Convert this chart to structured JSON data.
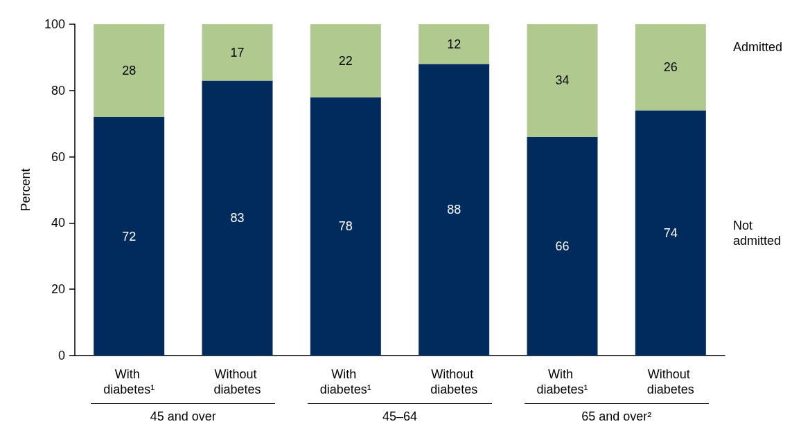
{
  "chart_data": {
    "type": "bar",
    "ylabel": "Percent",
    "categories": [
      "With diabetes¹",
      "Without diabetes",
      "With diabetes¹",
      "Without diabetes",
      "With diabetes¹",
      "Without diabetes"
    ],
    "series": [
      {
        "name": "Not admitted",
        "color": "#002b5c",
        "values": [
          72,
          83,
          78,
          88,
          66,
          74
        ]
      },
      {
        "name": "Admitted",
        "color": "#b0c98f",
        "values": [
          28,
          17,
          22,
          12,
          34,
          26
        ]
      }
    ],
    "stacked": true,
    "ylim": [
      0,
      100
    ],
    "yticks": [
      0,
      20,
      40,
      60,
      80,
      100
    ],
    "grid": false,
    "legend": false,
    "data_labels": true,
    "annotations": [
      "45 and over",
      "45–64",
      "65 and over²"
    ]
  }
}
